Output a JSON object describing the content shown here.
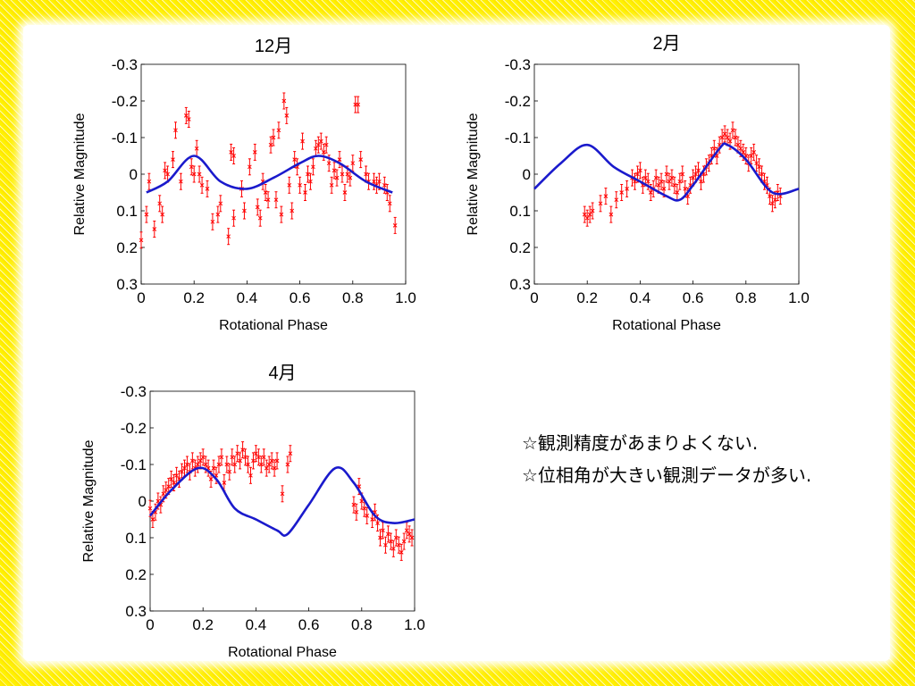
{
  "chart_data": [
    {
      "type": "scatter",
      "title": "12月",
      "xlabel": "Rotational Phase",
      "ylabel": "Relative Magnitude",
      "xlim": [
        0,
        1.0
      ],
      "ylim": [
        0.3,
        -0.3
      ],
      "y_inverted": true,
      "x_ticks": [
        "0",
        "0.2",
        "0.4",
        "0.6",
        "0.8",
        "1.0"
      ],
      "y_ticks": [
        "-0.3",
        "-0.2",
        "-0.1",
        "0",
        "0.1",
        "0.2",
        "0.3"
      ],
      "points": [
        [
          0.0,
          0.18
        ],
        [
          0.02,
          0.11
        ],
        [
          0.03,
          0.02
        ],
        [
          0.05,
          0.15
        ],
        [
          0.07,
          0.08
        ],
        [
          0.08,
          0.11
        ],
        [
          0.09,
          -0.01
        ],
        [
          0.1,
          0.0
        ],
        [
          0.12,
          -0.04
        ],
        [
          0.13,
          -0.12
        ],
        [
          0.15,
          0.02
        ],
        [
          0.17,
          -0.16
        ],
        [
          0.18,
          -0.15
        ],
        [
          0.19,
          -0.02
        ],
        [
          0.2,
          0.0
        ],
        [
          0.21,
          -0.07
        ],
        [
          0.22,
          0.0
        ],
        [
          0.23,
          0.03
        ],
        [
          0.25,
          0.04
        ],
        [
          0.27,
          0.13
        ],
        [
          0.29,
          0.11
        ],
        [
          0.3,
          0.08
        ],
        [
          0.33,
          0.17
        ],
        [
          0.35,
          0.12
        ],
        [
          0.34,
          -0.06
        ],
        [
          0.35,
          -0.05
        ],
        [
          0.38,
          0.04
        ],
        [
          0.39,
          0.1
        ],
        [
          0.41,
          -0.02
        ],
        [
          0.43,
          -0.06
        ],
        [
          0.44,
          0.09
        ],
        [
          0.45,
          0.12
        ],
        [
          0.46,
          0.02
        ],
        [
          0.47,
          0.05
        ],
        [
          0.48,
          0.07
        ],
        [
          0.49,
          -0.08
        ],
        [
          0.5,
          -0.1
        ],
        [
          0.51,
          0.07
        ],
        [
          0.52,
          -0.12
        ],
        [
          0.53,
          0.11
        ],
        [
          0.54,
          -0.2
        ],
        [
          0.55,
          -0.16
        ],
        [
          0.56,
          0.03
        ],
        [
          0.57,
          0.1
        ],
        [
          0.58,
          -0.04
        ],
        [
          0.59,
          -0.02
        ],
        [
          0.6,
          0.03
        ],
        [
          0.61,
          -0.09
        ],
        [
          0.62,
          0.05
        ],
        [
          0.63,
          0.0
        ],
        [
          0.64,
          0.02
        ],
        [
          0.65,
          -0.02
        ],
        [
          0.66,
          -0.07
        ],
        [
          0.67,
          -0.08
        ],
        [
          0.68,
          -0.09
        ],
        [
          0.69,
          -0.06
        ],
        [
          0.7,
          -0.08
        ],
        [
          0.71,
          -0.03
        ],
        [
          0.72,
          0.03
        ],
        [
          0.73,
          -0.01
        ],
        [
          0.74,
          0.01
        ],
        [
          0.75,
          -0.04
        ],
        [
          0.76,
          0.0
        ],
        [
          0.77,
          0.05
        ],
        [
          0.78,
          0.0
        ],
        [
          0.79,
          0.01
        ],
        [
          0.8,
          -0.03
        ],
        [
          0.81,
          -0.19
        ],
        [
          0.82,
          -0.19
        ],
        [
          0.83,
          -0.04
        ],
        [
          0.85,
          0.0
        ],
        [
          0.86,
          0.02
        ],
        [
          0.88,
          0.02
        ],
        [
          0.89,
          0.03
        ],
        [
          0.9,
          0.02
        ],
        [
          0.92,
          0.03
        ],
        [
          0.93,
          0.05
        ],
        [
          0.94,
          0.08
        ],
        [
          0.96,
          0.14
        ]
      ],
      "fit": [
        [
          0.02,
          0.05
        ],
        [
          0.1,
          0.02
        ],
        [
          0.2,
          -0.05
        ],
        [
          0.3,
          0.02
        ],
        [
          0.4,
          0.04
        ],
        [
          0.5,
          0.01
        ],
        [
          0.6,
          -0.03
        ],
        [
          0.67,
          -0.05
        ],
        [
          0.75,
          -0.03
        ],
        [
          0.85,
          0.02
        ],
        [
          0.95,
          0.05
        ]
      ]
    },
    {
      "type": "scatter",
      "title": "2月",
      "xlabel": "Rotational Phase",
      "ylabel": "Relative Magnitude",
      "xlim": [
        0,
        1.0
      ],
      "ylim": [
        0.3,
        -0.3
      ],
      "y_inverted": true,
      "x_ticks": [
        "0",
        "0.2",
        "0.4",
        "0.6",
        "0.8",
        "1.0"
      ],
      "y_ticks": [
        "-0.3",
        "-0.2",
        "-0.1",
        "0",
        "0.1",
        "0.2",
        "0.3"
      ],
      "points": [
        [
          0.19,
          0.11
        ],
        [
          0.2,
          0.12
        ],
        [
          0.21,
          0.11
        ],
        [
          0.22,
          0.1
        ],
        [
          0.25,
          0.08
        ],
        [
          0.27,
          0.06
        ],
        [
          0.29,
          0.11
        ],
        [
          0.31,
          0.07
        ],
        [
          0.33,
          0.05
        ],
        [
          0.35,
          0.04
        ],
        [
          0.37,
          0.01
        ],
        [
          0.38,
          0.02
        ],
        [
          0.39,
          0.0
        ],
        [
          0.4,
          -0.01
        ],
        [
          0.41,
          0.03
        ],
        [
          0.42,
          0.01
        ],
        [
          0.43,
          0.02
        ],
        [
          0.44,
          0.05
        ],
        [
          0.45,
          0.04
        ],
        [
          0.46,
          0.01
        ],
        [
          0.47,
          0.03
        ],
        [
          0.48,
          0.02
        ],
        [
          0.49,
          0.04
        ],
        [
          0.5,
          0.0
        ],
        [
          0.51,
          0.02
        ],
        [
          0.52,
          0.01
        ],
        [
          0.53,
          0.03
        ],
        [
          0.54,
          0.05
        ],
        [
          0.55,
          0.02
        ],
        [
          0.56,
          0.0
        ],
        [
          0.57,
          0.04
        ],
        [
          0.58,
          0.06
        ],
        [
          0.59,
          0.03
        ],
        [
          0.6,
          0.01
        ],
        [
          0.61,
          0.0
        ],
        [
          0.62,
          -0.01
        ],
        [
          0.63,
          0.02
        ],
        [
          0.64,
          0.0
        ],
        [
          0.65,
          -0.02
        ],
        [
          0.66,
          -0.03
        ],
        [
          0.67,
          -0.05
        ],
        [
          0.68,
          -0.07
        ],
        [
          0.69,
          -0.05
        ],
        [
          0.7,
          -0.08
        ],
        [
          0.71,
          -0.1
        ],
        [
          0.72,
          -0.11
        ],
        [
          0.73,
          -0.1
        ],
        [
          0.74,
          -0.09
        ],
        [
          0.75,
          -0.12
        ],
        [
          0.76,
          -0.1
        ],
        [
          0.77,
          -0.08
        ],
        [
          0.78,
          -0.07
        ],
        [
          0.79,
          -0.06
        ],
        [
          0.8,
          -0.05
        ],
        [
          0.81,
          -0.03
        ],
        [
          0.82,
          -0.05
        ],
        [
          0.83,
          -0.06
        ],
        [
          0.84,
          -0.03
        ],
        [
          0.85,
          -0.02
        ],
        [
          0.86,
          0.0
        ],
        [
          0.87,
          0.02
        ],
        [
          0.88,
          0.03
        ],
        [
          0.89,
          0.06
        ],
        [
          0.9,
          0.08
        ],
        [
          0.91,
          0.07
        ],
        [
          0.92,
          0.05
        ],
        [
          0.93,
          0.06
        ]
      ],
      "fit": [
        [
          0.0,
          0.04
        ],
        [
          0.1,
          -0.03
        ],
        [
          0.2,
          -0.08
        ],
        [
          0.3,
          -0.02
        ],
        [
          0.4,
          0.02
        ],
        [
          0.5,
          0.06
        ],
        [
          0.55,
          0.07
        ],
        [
          0.6,
          0.03
        ],
        [
          0.7,
          -0.07
        ],
        [
          0.73,
          -0.08
        ],
        [
          0.8,
          -0.04
        ],
        [
          0.9,
          0.05
        ],
        [
          1.0,
          0.04
        ]
      ]
    },
    {
      "type": "scatter",
      "title": "4月",
      "xlabel": "Rotational Phase",
      "ylabel": "Relative Magnitude",
      "xlim": [
        0,
        1.0
      ],
      "ylim": [
        0.3,
        -0.3
      ],
      "y_inverted": true,
      "x_ticks": [
        "0",
        "0.2",
        "0.4",
        "0.6",
        "0.8",
        "1.0"
      ],
      "y_ticks": [
        "-0.3",
        "-0.2",
        "-0.1",
        "0",
        "0.1",
        "0.2",
        "0.3"
      ],
      "points": [
        [
          0.0,
          0.02
        ],
        [
          0.01,
          0.05
        ],
        [
          0.02,
          0.03
        ],
        [
          0.03,
          0.0
        ],
        [
          0.04,
          0.01
        ],
        [
          0.05,
          -0.02
        ],
        [
          0.06,
          -0.03
        ],
        [
          0.07,
          -0.04
        ],
        [
          0.08,
          -0.06
        ],
        [
          0.09,
          -0.05
        ],
        [
          0.1,
          -0.07
        ],
        [
          0.11,
          -0.06
        ],
        [
          0.12,
          -0.08
        ],
        [
          0.13,
          -0.09
        ],
        [
          0.14,
          -0.1
        ],
        [
          0.15,
          -0.08
        ],
        [
          0.16,
          -0.11
        ],
        [
          0.17,
          -0.09
        ],
        [
          0.18,
          -0.1
        ],
        [
          0.19,
          -0.11
        ],
        [
          0.2,
          -0.12
        ],
        [
          0.21,
          -0.1
        ],
        [
          0.22,
          -0.09
        ],
        [
          0.23,
          -0.06
        ],
        [
          0.24,
          -0.09
        ],
        [
          0.25,
          -0.07
        ],
        [
          0.26,
          -0.1
        ],
        [
          0.27,
          -0.12
        ],
        [
          0.28,
          -0.05
        ],
        [
          0.29,
          -0.1
        ],
        [
          0.3,
          -0.08
        ],
        [
          0.31,
          -0.12
        ],
        [
          0.32,
          -0.1
        ],
        [
          0.33,
          -0.13
        ],
        [
          0.34,
          -0.11
        ],
        [
          0.35,
          -0.14
        ],
        [
          0.36,
          -0.12
        ],
        [
          0.37,
          -0.1
        ],
        [
          0.38,
          -0.07
        ],
        [
          0.39,
          -0.11
        ],
        [
          0.4,
          -0.13
        ],
        [
          0.41,
          -0.12
        ],
        [
          0.42,
          -0.1
        ],
        [
          0.43,
          -0.12
        ],
        [
          0.44,
          -0.09
        ],
        [
          0.45,
          -0.1
        ],
        [
          0.46,
          -0.11
        ],
        [
          0.47,
          -0.09
        ],
        [
          0.48,
          -0.11
        ],
        [
          0.5,
          -0.02
        ],
        [
          0.52,
          -0.1
        ],
        [
          0.53,
          -0.13
        ],
        [
          0.77,
          0.01
        ],
        [
          0.78,
          0.03
        ],
        [
          0.79,
          -0.04
        ],
        [
          0.8,
          0.0
        ],
        [
          0.81,
          0.02
        ],
        [
          0.82,
          0.04
        ],
        [
          0.84,
          0.05
        ],
        [
          0.85,
          0.03
        ],
        [
          0.86,
          0.06
        ],
        [
          0.87,
          0.1
        ],
        [
          0.88,
          0.08
        ],
        [
          0.89,
          0.12
        ],
        [
          0.9,
          0.09
        ],
        [
          0.91,
          0.11
        ],
        [
          0.92,
          0.13
        ],
        [
          0.93,
          0.1
        ],
        [
          0.94,
          0.12
        ],
        [
          0.95,
          0.14
        ],
        [
          0.96,
          0.11
        ],
        [
          0.97,
          0.08
        ],
        [
          0.98,
          0.09
        ],
        [
          0.99,
          0.1
        ]
      ],
      "fit": [
        [
          0.0,
          0.04
        ],
        [
          0.08,
          -0.03
        ],
        [
          0.18,
          -0.09
        ],
        [
          0.25,
          -0.06
        ],
        [
          0.32,
          0.02
        ],
        [
          0.4,
          0.05
        ],
        [
          0.48,
          0.08
        ],
        [
          0.52,
          0.09
        ],
        [
          0.6,
          0.01
        ],
        [
          0.7,
          -0.09
        ],
        [
          0.77,
          -0.05
        ],
        [
          0.85,
          0.04
        ],
        [
          0.92,
          0.06
        ],
        [
          1.0,
          0.05
        ]
      ]
    }
  ],
  "notes": [
    "☆観測精度があまりよくない.",
    "☆位相角が大きい観測データが多い."
  ],
  "colors": {
    "points": "#ff0000",
    "fit": "#1a1acc",
    "border": "#fff200"
  }
}
